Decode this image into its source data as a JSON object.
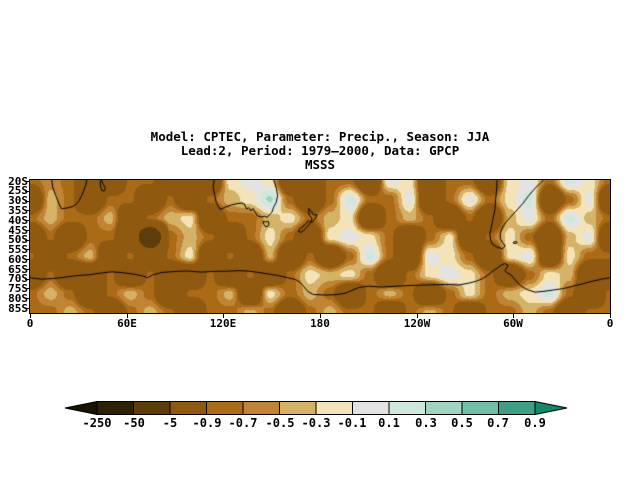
{
  "title": {
    "line1": "Model: CPTEC, Parameter: Precip., Season: JJA",
    "line2": "Lead:2, Period: 1979–2000, Data: GPCP",
    "line3": "MSSS"
  },
  "chart_data": {
    "type": "heatmap",
    "title": "Model: CPTEC, Parameter: Precip., Season: JJA",
    "subtitle": "Lead:2, Period: 1979–2000, Data: GPCP",
    "variable": "MSSS",
    "projection": "cylindrical lat-lon, longitudes 0-360, latitudes 20S to 87.5S",
    "grid_on": false,
    "x_axis": {
      "ticks": [
        "0",
        "60E",
        "120E",
        "180",
        "120W",
        "60W",
        "0"
      ]
    },
    "y_axis": {
      "ticks": [
        "20S",
        "25S",
        "30S",
        "35S",
        "40S",
        "45S",
        "50S",
        "55S",
        "60S",
        "65S",
        "70S",
        "75S",
        "80S",
        "85S"
      ]
    },
    "colorbar": {
      "levels": [
        -250,
        -50,
        -5,
        -0.9,
        -0.7,
        -0.5,
        -0.3,
        -0.1,
        0.1,
        0.3,
        0.5,
        0.7,
        0.9
      ],
      "labels": [
        "-250",
        "-50",
        "-5",
        "-0.9",
        "-0.7",
        "-0.5",
        "-0.3",
        "-0.1",
        "0.1",
        "0.3",
        "0.5",
        "0.7",
        "0.9"
      ],
      "colors": [
        "#1a1202",
        "#2e2003",
        "#5d3d09",
        "#8f5a10",
        "#aa6a16",
        "#c08434",
        "#d4b266",
        "#f2e3b8",
        "#e3e3e3",
        "#cfe8dc",
        "#9fd4c1",
        "#6fc0a8",
        "#3f9e86",
        "#108968"
      ]
    },
    "grid": {
      "lon_min": 0,
      "lon_max": 360,
      "lat_north": -20,
      "lat_south": -87.5,
      "values": [
        [
          -0.8,
          -0.6,
          -0.8,
          -2,
          -2,
          -0.8,
          -0.8,
          -2,
          -2,
          -2,
          -0.2,
          0,
          -0.2,
          -2,
          -2,
          -0.8,
          -0.8,
          -2,
          0,
          -0.2,
          -2,
          -0.8,
          -0.8,
          -2,
          -0.2,
          0,
          -0.8,
          0.2,
          -0.2,
          -0.8
        ],
        [
          -2,
          -0.4,
          -0.8,
          -2,
          -0.8,
          -0.8,
          -2,
          -0.8,
          -2,
          -0.8,
          -0.4,
          -0.2,
          0.35,
          -0.8,
          -2,
          -0.8,
          0.2,
          -0.8,
          -0.8,
          0,
          -2,
          -0.8,
          0,
          -0.8,
          -0.2,
          0.2,
          -2,
          -0.8,
          0,
          -2
        ],
        [
          -0.8,
          -0.4,
          -0.8,
          -0.8,
          -0.4,
          -2,
          -0.8,
          -0.4,
          -0.2,
          -2,
          -0.8,
          -0.8,
          -0.4,
          -0.2,
          -0.8,
          -0.4,
          -0.2,
          -2,
          -0.8,
          -0.4,
          -0.8,
          -2,
          -0.8,
          -2,
          -0.4,
          0,
          -0.8,
          0.2,
          -0.4,
          -0.8
        ],
        [
          -2,
          -0.8,
          -2,
          -0.8,
          -0.8,
          -2,
          -10,
          -0.8,
          -0.4,
          -0.8,
          -2,
          -0.8,
          -0.2,
          -0.8,
          -2,
          -0.2,
          0,
          -0.2,
          -0.8,
          -2,
          -0.8,
          -0.2,
          -2,
          -0.8,
          -0.2,
          -0.8,
          -2,
          -0.4,
          0,
          -2
        ],
        [
          -0.8,
          -2,
          -0.8,
          -0.4,
          -2,
          -0.8,
          -2,
          -0.8,
          -0.2,
          -2,
          -0.8,
          -2,
          -0.4,
          -2,
          -0.8,
          -2,
          -0.8,
          0.2,
          -0.8,
          -2,
          0,
          -0.2,
          -0.8,
          -2,
          -0.2,
          0,
          -2,
          -0.2,
          -0.8,
          -0.8
        ],
        [
          -2,
          -0.8,
          -2,
          -2,
          -0.8,
          -2,
          -0.8,
          -2,
          -2,
          -0.8,
          -2,
          -0.8,
          -2,
          -0.8,
          -0.2,
          -0.4,
          -0.2,
          -0.8,
          -2,
          -0.8,
          -0.2,
          0,
          -0.2,
          -0.8,
          -2,
          -0.8,
          -0.2,
          -0.4,
          -2,
          -2
        ],
        [
          -0.8,
          -0.4,
          -0.8,
          -2,
          -0.8,
          -0.4,
          -0.8,
          -2,
          -0.8,
          -0.8,
          -0.4,
          -2,
          -0.2,
          -0.8,
          -0.4,
          -0.8,
          -2,
          -0.8,
          -0.4,
          -0.8,
          -2,
          -0.8,
          -0.2,
          -0.8,
          -0.4,
          -0.2,
          0.2,
          -0.8,
          -2,
          -0.8
        ],
        [
          -0.8,
          -0.8,
          -0.4,
          -0.8,
          -2,
          -0.8,
          -0.4,
          -0.8,
          -2,
          -0.8,
          -0.8,
          -0.4,
          -0.8,
          -2,
          -0.8,
          -0.4,
          -0.8,
          -0.8,
          -2,
          -0.8,
          -0.4,
          -0.8,
          -2,
          -0.8,
          -0.8,
          -0.4,
          -0.8,
          -2,
          -0.8,
          -0.8
        ]
      ]
    },
    "coastlines": {
      "africa": [
        [
          13.5,
          20
        ],
        [
          14.2,
          24
        ],
        [
          16,
          28
        ],
        [
          18,
          32
        ],
        [
          19.5,
          34.6
        ],
        [
          23,
          34.2
        ],
        [
          26,
          33.6
        ],
        [
          28.5,
          32.5
        ],
        [
          30.5,
          30.5
        ],
        [
          32,
          28
        ],
        [
          33.5,
          25
        ],
        [
          34.8,
          22
        ],
        [
          35.2,
          20
        ]
      ],
      "madagascar": [
        [
          44.3,
          20
        ],
        [
          45.3,
          22
        ],
        [
          46.8,
          24.3
        ],
        [
          46.2,
          25.4
        ],
        [
          44.8,
          25.5
        ],
        [
          43.9,
          23.8
        ],
        [
          43.5,
          21.8
        ],
        [
          43.9,
          20.3
        ],
        [
          44.3,
          20
        ]
      ],
      "australia": [
        [
          114.3,
          20
        ],
        [
          113.7,
          23.5
        ],
        [
          114.6,
          27.5
        ],
        [
          115.6,
          31.5
        ],
        [
          118,
          34.9
        ],
        [
          121.5,
          33.7
        ],
        [
          125,
          32.6
        ],
        [
          128.5,
          32
        ],
        [
          131.5,
          31.7
        ],
        [
          133,
          32.2
        ],
        [
          134.5,
          34.7
        ],
        [
          135.8,
          34
        ],
        [
          137.2,
          35.6
        ],
        [
          138.4,
          34.4
        ],
        [
          139.5,
          36
        ],
        [
          141,
          38.1
        ],
        [
          143.5,
          38.8
        ],
        [
          145.5,
          38.4
        ],
        [
          147.3,
          38.9
        ],
        [
          148.5,
          37.7
        ],
        [
          150.2,
          36.3
        ],
        [
          151.2,
          33.8
        ],
        [
          152.8,
          31.5
        ],
        [
          153.7,
          28
        ],
        [
          153,
          24.5
        ],
        [
          152,
          21.5
        ],
        [
          151.3,
          20
        ]
      ],
      "tasmania": [
        [
          144.7,
          40.9
        ],
        [
          146.2,
          41.3
        ],
        [
          147.7,
          40.9
        ],
        [
          148.4,
          42.3
        ],
        [
          147.6,
          43.5
        ],
        [
          146.2,
          43.7
        ],
        [
          145,
          42.3
        ],
        [
          144.7,
          40.9
        ]
      ],
      "nz_north": [
        [
          173,
          34.5
        ],
        [
          174.8,
          36.2
        ],
        [
          175.9,
          37.6
        ],
        [
          178.2,
          37.7
        ],
        [
          177.2,
          39.3
        ],
        [
          175.3,
          41.4
        ],
        [
          174.7,
          41.4
        ],
        [
          174.9,
          39.3
        ],
        [
          173.3,
          38
        ],
        [
          173,
          36
        ],
        [
          173,
          34.5
        ]
      ],
      "nz_south": [
        [
          172.8,
          40.5
        ],
        [
          174.2,
          41.2
        ],
        [
          173.1,
          42.9
        ],
        [
          171.3,
          44.3
        ],
        [
          169.8,
          45.7
        ],
        [
          167.9,
          46.6
        ],
        [
          166.4,
          45.9
        ],
        [
          168.2,
          44.3
        ],
        [
          170.6,
          42.7
        ],
        [
          172,
          41.3
        ],
        [
          172.8,
          40.5
        ]
      ],
      "south_america": [
        [
          289.9,
          20
        ],
        [
          289.6,
          25
        ],
        [
          289,
          30
        ],
        [
          288.6,
          35
        ],
        [
          287.3,
          40
        ],
        [
          286.2,
          44.5
        ],
        [
          285.4,
          47.5
        ],
        [
          285.9,
          50.5
        ],
        [
          287.2,
          52.8
        ],
        [
          289.8,
          54
        ],
        [
          293.2,
          54.9
        ],
        [
          294.8,
          53.6
        ],
        [
          293.4,
          51.8
        ],
        [
          292,
          49.8
        ],
        [
          291.9,
          46.8
        ],
        [
          293.4,
          43.8
        ],
        [
          295.8,
          41
        ],
        [
          298.8,
          38.3
        ],
        [
          302.8,
          34.8
        ],
        [
          306,
          31.8
        ],
        [
          309.2,
          28.3
        ],
        [
          312.8,
          24.8
        ],
        [
          316.5,
          21.8
        ],
        [
          318.8,
          20
        ]
      ],
      "falklands": [
        [
          300.4,
          51.3
        ],
        [
          302.3,
          51.5
        ],
        [
          301.6,
          52.3
        ],
        [
          299.9,
          52
        ],
        [
          300.4,
          51.3
        ]
      ],
      "antarctica": [
        [
          0,
          69.6
        ],
        [
          7,
          70.3
        ],
        [
          14,
          70
        ],
        [
          21,
          69.4
        ],
        [
          29,
          68.5
        ],
        [
          37,
          68.1
        ],
        [
          45,
          67.1
        ],
        [
          51,
          66.6
        ],
        [
          57,
          67
        ],
        [
          64,
          67.7
        ],
        [
          70,
          68.7
        ],
        [
          73,
          69.6
        ],
        [
          76,
          68.2
        ],
        [
          82,
          66.9
        ],
        [
          90,
          66.4
        ],
        [
          98,
          66.2
        ],
        [
          106,
          66.7
        ],
        [
          114,
          66.4
        ],
        [
          122,
          66.3
        ],
        [
          130,
          66
        ],
        [
          136,
          66.3
        ],
        [
          142,
          66.9
        ],
        [
          148,
          67.7
        ],
        [
          154,
          68.5
        ],
        [
          160,
          69.6
        ],
        [
          165,
          70.6
        ],
        [
          168,
          72.2
        ],
        [
          170,
          74.2
        ],
        [
          172.5,
          76.6
        ],
        [
          176,
          78.1
        ],
        [
          183,
          78.4
        ],
        [
          190,
          78.2
        ],
        [
          196,
          77.4
        ],
        [
          200,
          76
        ],
        [
          204,
          74.6
        ],
        [
          210,
          73.9
        ],
        [
          218,
          74.3
        ],
        [
          226,
          74
        ],
        [
          234,
          73.6
        ],
        [
          242,
          73.4
        ],
        [
          250,
          73.2
        ],
        [
          258,
          73
        ],
        [
          266,
          73.3
        ],
        [
          272,
          72.4
        ],
        [
          277,
          71.4
        ],
        [
          281,
          70
        ],
        [
          284,
          68.4
        ],
        [
          287,
          66.4
        ],
        [
          290,
          64.7
        ],
        [
          292.5,
          63.2
        ],
        [
          294.6,
          62.4
        ],
        [
          296.6,
          63.1
        ],
        [
          296,
          64.6
        ],
        [
          294.6,
          65.9
        ],
        [
          296.2,
          67.1
        ],
        [
          298.6,
          68.2
        ],
        [
          300.2,
          69.7
        ],
        [
          302.2,
          71.7
        ],
        [
          304.4,
          73.6
        ],
        [
          308.5,
          75.6
        ],
        [
          313.5,
          76.9
        ],
        [
          319,
          76.5
        ],
        [
          325,
          75.8
        ],
        [
          331,
          75.1
        ],
        [
          337,
          73.9
        ],
        [
          343,
          72.7
        ],
        [
          349,
          71.4
        ],
        [
          355,
          70.3
        ],
        [
          360,
          69.6
        ]
      ]
    }
  }
}
